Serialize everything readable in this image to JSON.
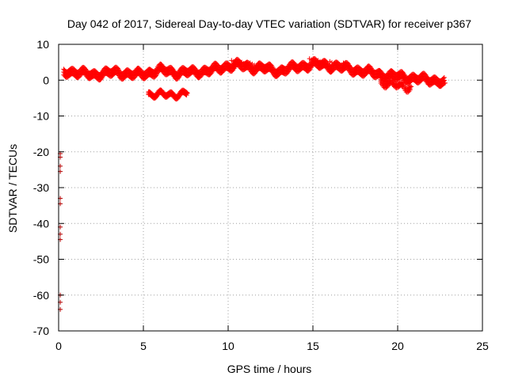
{
  "chart_data": {
    "type": "scatter",
    "title": "Day 042 of 2017, Sidereal Day-to-day VTEC variation (SDTVAR) for receiver p367",
    "xlabel": "GPS time / hours",
    "ylabel": "SDTVAR / TECUs",
    "xlim": [
      0,
      25
    ],
    "ylim": [
      -70,
      10
    ],
    "xticks": [
      0,
      5,
      10,
      15,
      20,
      25
    ],
    "xtick_labels": [
      "0",
      "5",
      "10",
      "15",
      "20",
      "25"
    ],
    "yticks": [
      10,
      0,
      -10,
      -20,
      -30,
      -40,
      -50,
      -60,
      -70
    ],
    "ytick_labels": [
      "10",
      "0",
      "-10",
      "-20",
      "-30",
      "-40",
      "-50",
      "-60",
      "-70"
    ],
    "grid": true,
    "marker": "plus",
    "series": [
      {
        "name": "SDTVAR",
        "color": "#ff0000",
        "dark_color": "#b00000",
        "main_band": [
          [
            0.3,
            2.0
          ],
          [
            0.6,
            2.5
          ],
          [
            1.0,
            2.2
          ],
          [
            1.5,
            1.8
          ],
          [
            2.0,
            1.5
          ],
          [
            2.5,
            1.8
          ],
          [
            3.0,
            2.0
          ],
          [
            3.5,
            2.2
          ],
          [
            4.0,
            1.8
          ],
          [
            4.5,
            1.5
          ],
          [
            5.0,
            1.8
          ],
          [
            5.5,
            2.2
          ],
          [
            6.0,
            2.8
          ],
          [
            6.5,
            2.5
          ],
          [
            7.0,
            2.0
          ],
          [
            7.5,
            2.2
          ],
          [
            8.0,
            2.2
          ],
          [
            8.5,
            2.5
          ],
          [
            9.0,
            2.8
          ],
          [
            9.5,
            3.2
          ],
          [
            10.0,
            4.0
          ],
          [
            10.5,
            4.2
          ],
          [
            11.0,
            3.8
          ],
          [
            11.5,
            3.5
          ],
          [
            12.0,
            3.5
          ],
          [
            12.5,
            2.8
          ],
          [
            13.0,
            2.5
          ],
          [
            13.5,
            3.2
          ],
          [
            14.0,
            3.5
          ],
          [
            14.5,
            4.0
          ],
          [
            15.0,
            4.5
          ],
          [
            15.5,
            4.2
          ],
          [
            16.0,
            4.0
          ],
          [
            16.5,
            3.8
          ],
          [
            17.0,
            3.2
          ],
          [
            17.5,
            2.8
          ],
          [
            18.0,
            2.5
          ],
          [
            18.5,
            2.0
          ],
          [
            19.0,
            1.5
          ],
          [
            19.5,
            1.2
          ],
          [
            20.0,
            1.0
          ],
          [
            20.5,
            0.8
          ],
          [
            21.0,
            0.5
          ],
          [
            21.5,
            0.2
          ],
          [
            22.0,
            0.0
          ],
          [
            22.5,
            -0.2
          ],
          [
            22.8,
            -0.8
          ]
        ],
        "negative_segment": [
          [
            5.3,
            -3.8
          ],
          [
            5.8,
            -4.0
          ],
          [
            6.3,
            -4.1
          ],
          [
            6.8,
            -4.0
          ],
          [
            7.3,
            -3.8
          ],
          [
            7.6,
            -3.6
          ]
        ],
        "lower_branch": [
          [
            19.0,
            -0.5
          ],
          [
            19.5,
            -1.0
          ],
          [
            20.0,
            -1.6
          ],
          [
            20.5,
            -2.0
          ],
          [
            20.8,
            -1.8
          ]
        ],
        "upper_excursions": [
          [
            10.2,
            5.5
          ],
          [
            10.8,
            5.0
          ],
          [
            11.3,
            4.8
          ],
          [
            14.8,
            6.0
          ],
          [
            15.3,
            5.5
          ],
          [
            16.0,
            5.2
          ],
          [
            16.8,
            4.8
          ]
        ],
        "edge_points": [
          [
            0.05,
            -20.5
          ],
          [
            0.05,
            -21.5
          ],
          [
            0.05,
            -24.0
          ],
          [
            0.05,
            -25.5
          ],
          [
            0.05,
            -33.0
          ],
          [
            0.05,
            -34.5
          ],
          [
            0.05,
            -41.0
          ],
          [
            0.05,
            -43.0
          ],
          [
            0.05,
            -44.5
          ],
          [
            0.05,
            -60.0
          ],
          [
            0.05,
            -62.0
          ],
          [
            0.05,
            -64.0
          ]
        ]
      }
    ]
  }
}
